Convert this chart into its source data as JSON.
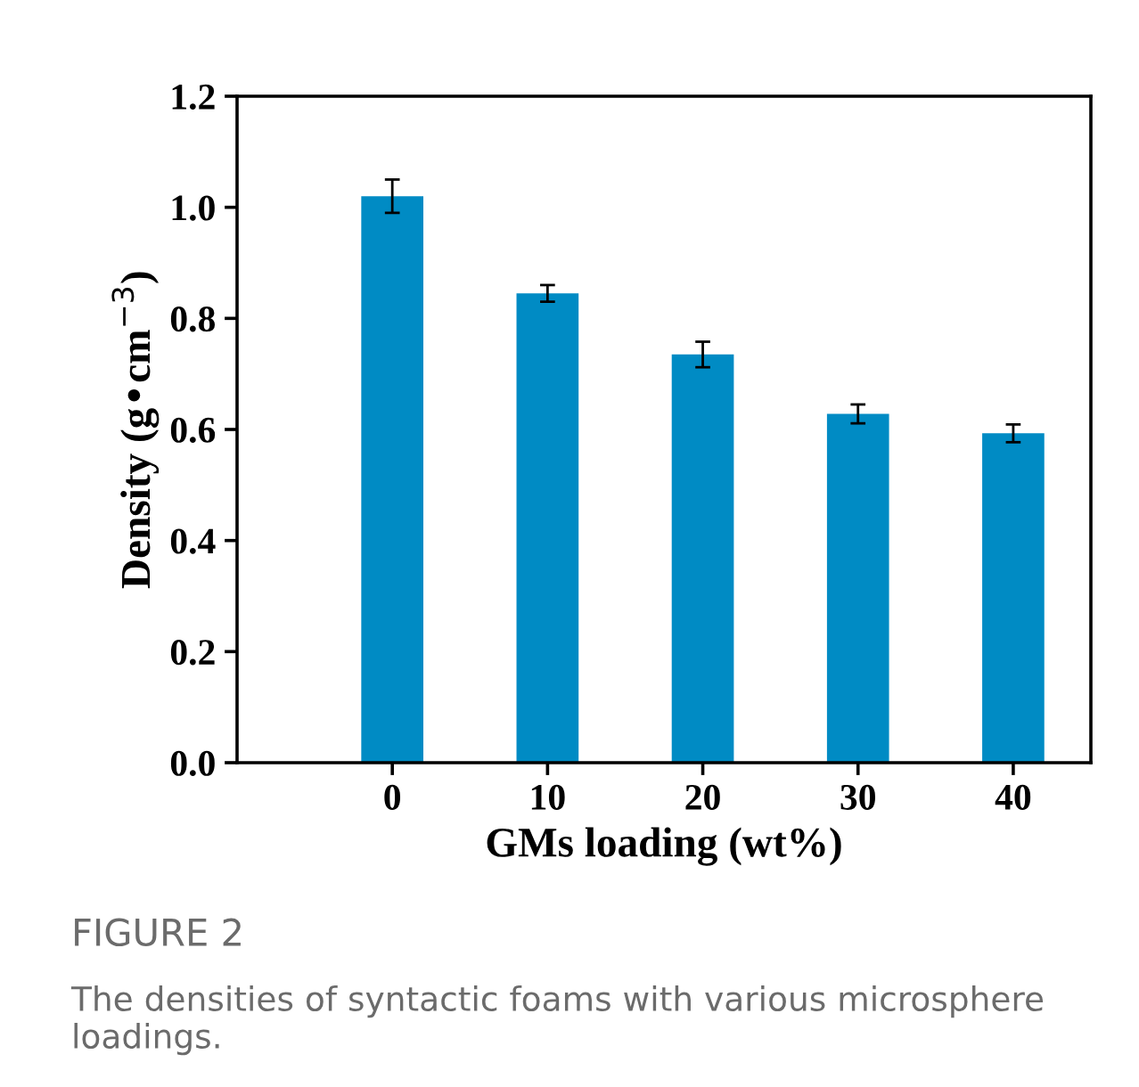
{
  "chart_data": {
    "type": "bar",
    "xlabel": "GMs loading (wt%)",
    "ylabel": "Density (g•cm$^{−3}$)",
    "categories": [
      "0",
      "10",
      "20",
      "30",
      "40"
    ],
    "values": [
      1.02,
      0.845,
      0.735,
      0.628,
      0.593
    ],
    "errors": [
      0.03,
      0.015,
      0.023,
      0.017,
      0.016
    ],
    "color": "#008bc4",
    "ylim": [
      0,
      1.2
    ],
    "yticks": [
      {
        "value": 0,
        "label": "0.0"
      },
      0.2,
      0.4,
      0.6,
      0.8,
      {
        "value": 1,
        "label": "1.0"
      },
      1.2
    ],
    "annotations": [
      "FIGURE 2",
      "The densities of syntactic foams with various microsphere loadings."
    ]
  }
}
